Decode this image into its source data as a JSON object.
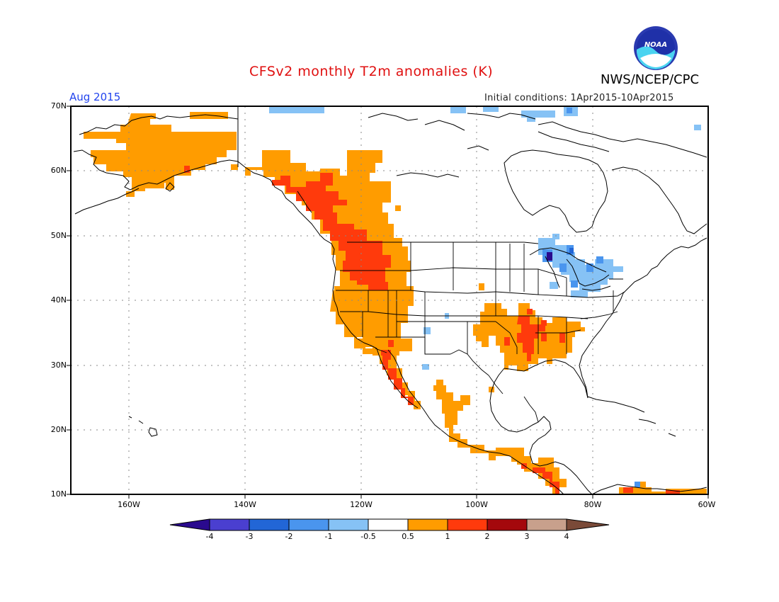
{
  "header": {
    "title": "CFSv2 monthly T2m anomalies (K)",
    "organization": "NWS/NCEP/CPC",
    "valid_month": "Aug 2015",
    "initial_conditions": "Initial conditions: 1Apr2015-10Apr2015",
    "logo_text": "NOAA"
  },
  "map": {
    "lat_labels": [
      "70N",
      "60N",
      "50N",
      "40N",
      "30N",
      "20N",
      "10N"
    ],
    "lon_labels": [
      "160W",
      "140W",
      "120W",
      "100W",
      "80W",
      "60W"
    ],
    "gridlines": "dotted"
  },
  "colorbar": {
    "labels": [
      "-4",
      "-3",
      "-2",
      "-1",
      "-0.5",
      "0.5",
      "1",
      "2",
      "3",
      "4"
    ],
    "colors": [
      "#2a0a8e",
      "#4a3fd0",
      "#2266d6",
      "#4a95ee",
      "#86c2f5",
      "#ffffff",
      "#ff9c00",
      "#ff3a0c",
      "#a4080c",
      "#c8a08c",
      "#7a4a38"
    ]
  },
  "anomaly_regions": [
    {
      "region": "Alaska and Yukon",
      "category": "0.5 to 1"
    },
    {
      "region": "Pacific Northwest and British Columbia coast",
      "category": "1 to 2"
    },
    {
      "region": "US West Coast and Great Basin",
      "category": "0.5 to 1"
    },
    {
      "region": "Baja California",
      "category": "1 to 2"
    },
    {
      "region": "Southern Plains to Mid-South",
      "category": "0.5 to 1"
    },
    {
      "region": "Lower Mississippi Valley",
      "category": "1 to 2"
    },
    {
      "region": "Great Lakes",
      "category": "-1 to -0.5"
    },
    {
      "region": "Western Mexico coast",
      "category": "0.5 to 1"
    },
    {
      "region": "Central America",
      "category": "0.5 to 2"
    }
  ]
}
